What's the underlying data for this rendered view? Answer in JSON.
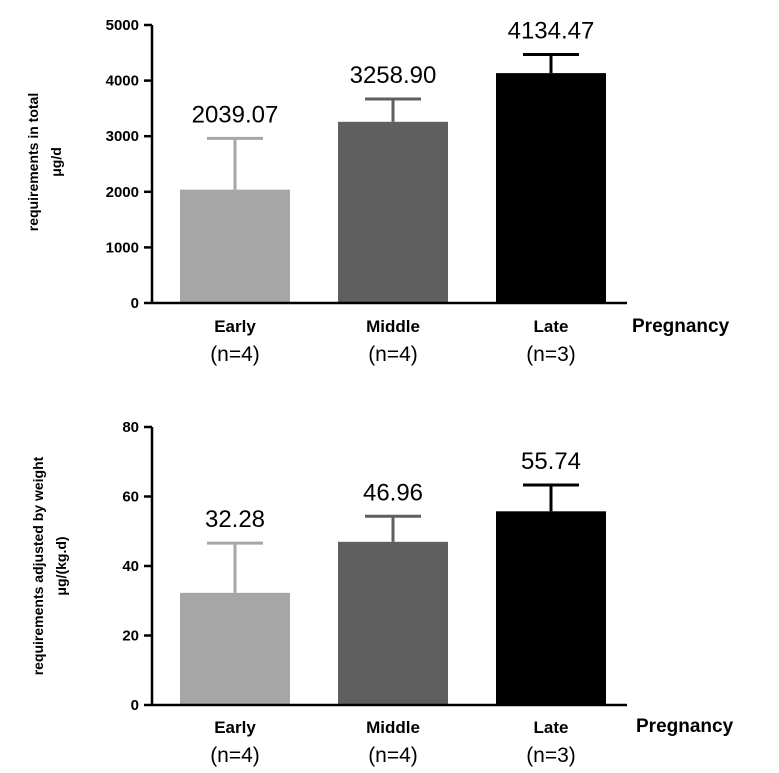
{
  "chart_data": [
    {
      "type": "bar",
      "categories": [
        "Early",
        "Middle",
        "Late"
      ],
      "group_sizes": [
        "(n=4)",
        "(n=4)",
        "(n=3)"
      ],
      "values": [
        2039.07,
        3258.9,
        4134.47
      ],
      "error_upper": [
        2960,
        3670,
        4470
      ],
      "data_labels": [
        "2039.07",
        "3258.90",
        "4134.47"
      ],
      "bar_colors": [
        "#a6a6a6",
        "#5f5f5f",
        "#000000"
      ],
      "ylabel": [
        "requirements in total",
        "μg/d"
      ],
      "xlabel": "Pregnancy",
      "ylim": [
        0,
        5000
      ],
      "yticks": [
        0,
        1000,
        2000,
        3000,
        4000,
        5000
      ]
    },
    {
      "type": "bar",
      "categories": [
        "Early",
        "Middle",
        "Late"
      ],
      "group_sizes": [
        "(n=4)",
        "(n=4)",
        "(n=3)"
      ],
      "values": [
        32.28,
        46.96,
        55.74
      ],
      "error_upper": [
        46.6,
        54.3,
        63.3
      ],
      "data_labels": [
        "32.28",
        "46.96",
        "55.74"
      ],
      "bar_colors": [
        "#a6a6a6",
        "#5f5f5f",
        "#000000"
      ],
      "ylabel": [
        "requirements adjusted by weight",
        "μg/(kg.d)"
      ],
      "xlabel": "Pregnancy",
      "ylim": [
        0,
        80
      ],
      "yticks": [
        0,
        20,
        40,
        60,
        80
      ]
    }
  ]
}
